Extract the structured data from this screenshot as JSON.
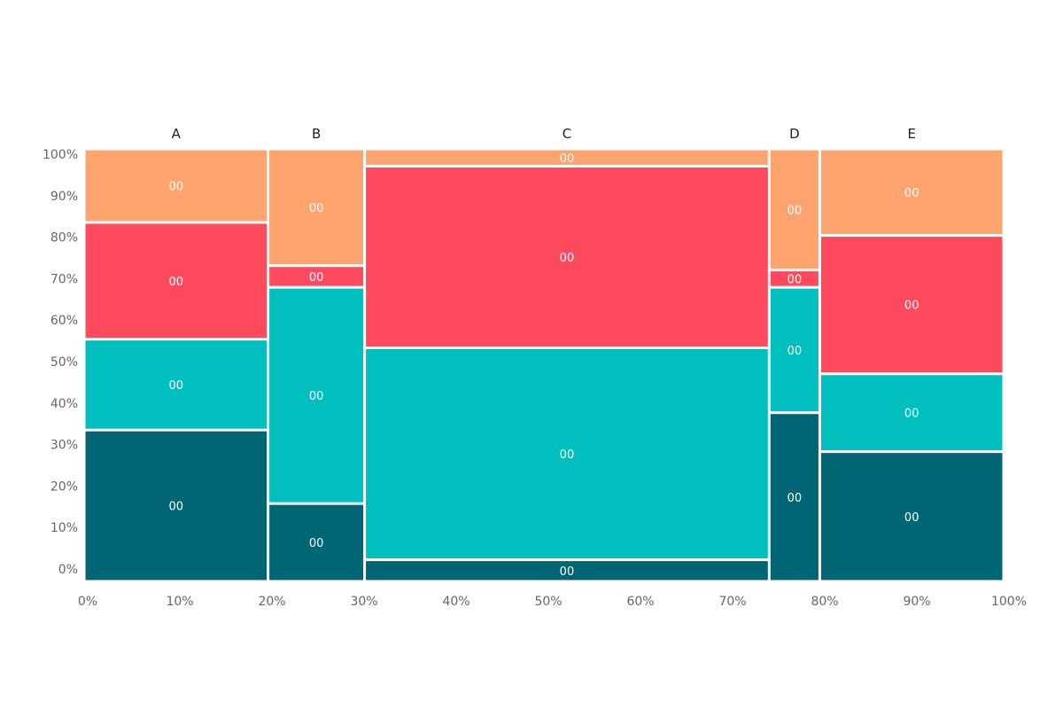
{
  "chart_data": {
    "type": "mosaic",
    "x_ticks": [
      "0%",
      "10%",
      "20%",
      "30%",
      "40%",
      "50%",
      "60%",
      "70%",
      "80%",
      "90%",
      "100%"
    ],
    "y_ticks": [
      "0%",
      "10%",
      "20%",
      "30%",
      "40%",
      "50%",
      "60%",
      "70%",
      "80%",
      "90%",
      "100%"
    ],
    "xlim": [
      0,
      100
    ],
    "ylim": [
      0,
      100
    ],
    "grid": false,
    "colors": {
      "dark_teal": "#006674",
      "teal": "#00bfbf",
      "red": "#ff4a5e",
      "orange": "#ffa46f"
    },
    "columns": [
      {
        "category": "A",
        "x_start": 0,
        "x_end": 20,
        "segments": [
          {
            "color": "dark_teal",
            "y_start": 0,
            "y_end": 35,
            "label": "00"
          },
          {
            "color": "teal",
            "y_start": 35,
            "y_end": 56,
            "label": "00"
          },
          {
            "color": "red",
            "y_start": 56,
            "y_end": 83,
            "label": "00"
          },
          {
            "color": "orange",
            "y_start": 83,
            "y_end": 100,
            "label": "00"
          }
        ]
      },
      {
        "category": "B",
        "x_start": 20,
        "x_end": 30.5,
        "segments": [
          {
            "color": "dark_teal",
            "y_start": 0,
            "y_end": 18,
            "label": "00"
          },
          {
            "color": "teal",
            "y_start": 18,
            "y_end": 68,
            "label": "00"
          },
          {
            "color": "red",
            "y_start": 68,
            "y_end": 73,
            "label": "00"
          },
          {
            "color": "orange",
            "y_start": 73,
            "y_end": 100,
            "label": "00"
          }
        ]
      },
      {
        "category": "C",
        "x_start": 30.5,
        "x_end": 74.5,
        "segments": [
          {
            "color": "dark_teal",
            "y_start": 0,
            "y_end": 5,
            "label": "00"
          },
          {
            "color": "teal",
            "y_start": 5,
            "y_end": 54,
            "label": "00"
          },
          {
            "color": "red",
            "y_start": 54,
            "y_end": 96,
            "label": "00"
          },
          {
            "color": "orange",
            "y_start": 96,
            "y_end": 100,
            "label": "00"
          }
        ]
      },
      {
        "category": "D",
        "x_start": 74.5,
        "x_end": 80,
        "segments": [
          {
            "color": "dark_teal",
            "y_start": 0,
            "y_end": 39,
            "label": "00"
          },
          {
            "color": "teal",
            "y_start": 39,
            "y_end": 68,
            "label": "00"
          },
          {
            "color": "red",
            "y_start": 68,
            "y_end": 72,
            "label": "00"
          },
          {
            "color": "orange",
            "y_start": 72,
            "y_end": 100,
            "label": "00"
          }
        ]
      },
      {
        "category": "E",
        "x_start": 80,
        "x_end": 100,
        "segments": [
          {
            "color": "dark_teal",
            "y_start": 0,
            "y_end": 30,
            "label": "00"
          },
          {
            "color": "teal",
            "y_start": 30,
            "y_end": 48,
            "label": "00"
          },
          {
            "color": "red",
            "y_start": 48,
            "y_end": 80,
            "label": "00"
          },
          {
            "color": "orange",
            "y_start": 80,
            "y_end": 100,
            "label": "00"
          }
        ]
      }
    ]
  }
}
